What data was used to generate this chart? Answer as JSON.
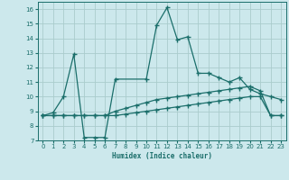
{
  "xlabel": "Humidex (Indice chaleur)",
  "bg_color": "#cce8ec",
  "grid_color": "#aacccc",
  "line_color": "#1a6e6a",
  "xlim": [
    -0.5,
    23.5
  ],
  "ylim": [
    7,
    16.5
  ],
  "xticks": [
    0,
    1,
    2,
    3,
    4,
    5,
    6,
    7,
    8,
    9,
    10,
    11,
    12,
    13,
    14,
    15,
    16,
    17,
    18,
    19,
    20,
    21,
    22,
    23
  ],
  "yticks": [
    7,
    8,
    9,
    10,
    11,
    12,
    13,
    14,
    15,
    16
  ],
  "series1_x": [
    0,
    1,
    2,
    3,
    4,
    5,
    6,
    7,
    10,
    11,
    12,
    13,
    14,
    15,
    16,
    17,
    18,
    19,
    20,
    21,
    22,
    23
  ],
  "series1_y": [
    8.7,
    8.9,
    10.0,
    12.9,
    7.2,
    7.2,
    7.2,
    11.2,
    11.2,
    14.9,
    16.1,
    13.9,
    14.1,
    11.6,
    11.6,
    11.3,
    11.0,
    11.3,
    10.5,
    10.2,
    10.0,
    9.8
  ],
  "series2_x": [
    0,
    1,
    2,
    3,
    4,
    5,
    6,
    7,
    8,
    9,
    10,
    11,
    12,
    13,
    14,
    15,
    16,
    17,
    18,
    19,
    20,
    21,
    22,
    23
  ],
  "series2_y": [
    8.7,
    8.7,
    8.7,
    8.7,
    8.7,
    8.7,
    8.7,
    9.0,
    9.2,
    9.4,
    9.6,
    9.8,
    9.9,
    10.0,
    10.1,
    10.2,
    10.3,
    10.4,
    10.5,
    10.6,
    10.7,
    10.4,
    8.7,
    8.7
  ],
  "series3_x": [
    0,
    1,
    2,
    3,
    4,
    5,
    6,
    7,
    8,
    9,
    10,
    11,
    12,
    13,
    14,
    15,
    16,
    17,
    18,
    19,
    20,
    21,
    22,
    23
  ],
  "series3_y": [
    8.7,
    8.7,
    8.7,
    8.7,
    8.7,
    8.7,
    8.7,
    8.7,
    8.8,
    8.9,
    9.0,
    9.1,
    9.2,
    9.3,
    9.4,
    9.5,
    9.6,
    9.7,
    9.8,
    9.9,
    10.0,
    10.0,
    8.7,
    8.7
  ]
}
